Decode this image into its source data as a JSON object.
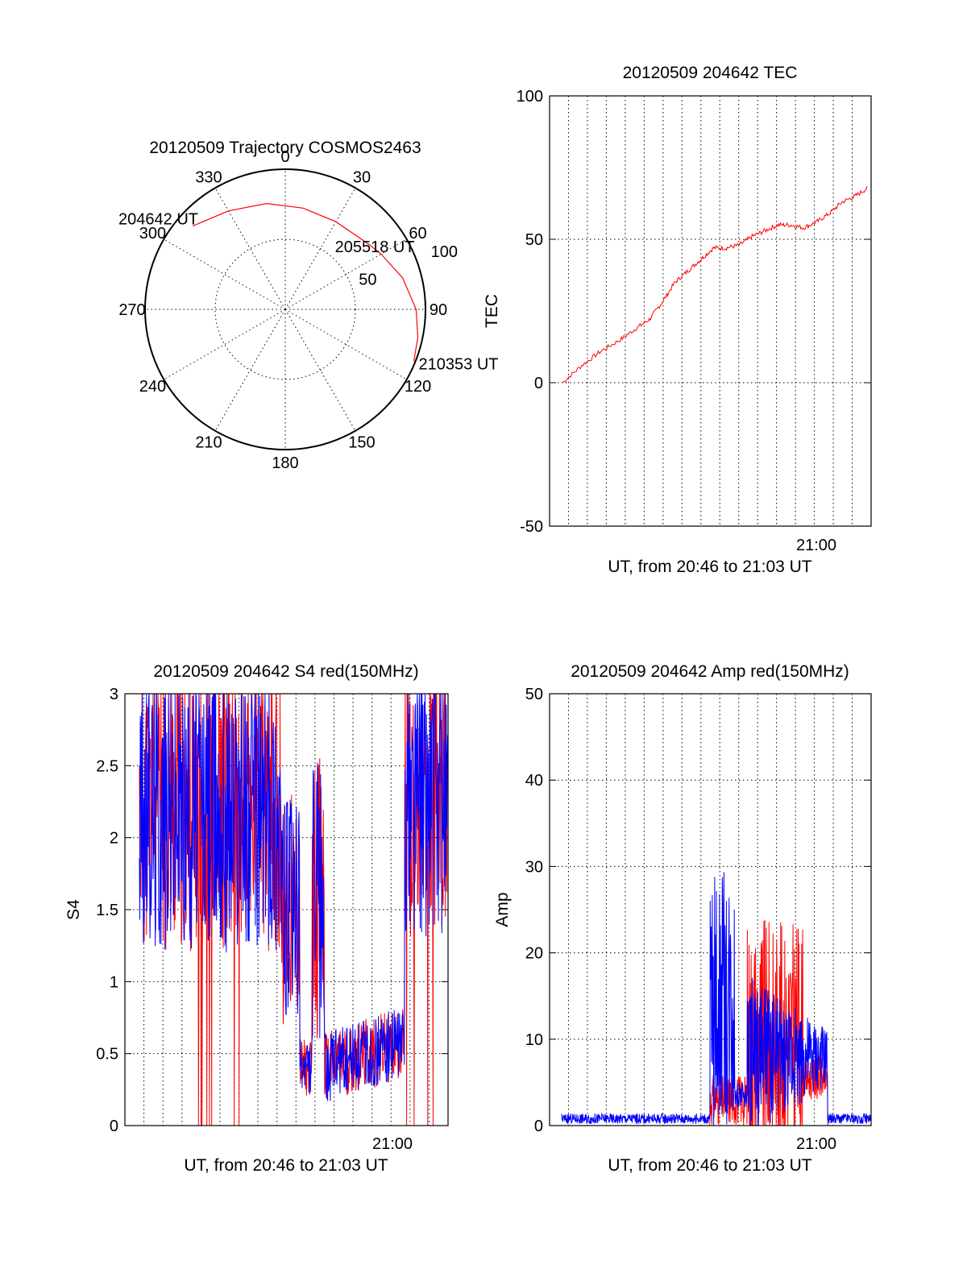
{
  "chart_data": [
    {
      "type": "polar",
      "title": "20120509 Trajectory COSMOS2463",
      "angle_labels": [
        "0",
        "30",
        "60",
        "90",
        "120",
        "150",
        "180",
        "210",
        "240",
        "270",
        "300",
        "330"
      ],
      "radial_labels": [
        "50",
        "100"
      ],
      "series": [
        {
          "color": "#ff0000",
          "points": [
            {
              "az": 312,
              "el": 10
            },
            {
              "az": 330,
              "el": 17
            },
            {
              "az": 350,
              "el": 21
            },
            {
              "az": 10,
              "el": 24
            },
            {
              "az": 30,
              "el": 25
            },
            {
              "az": 52,
              "el": 22
            },
            {
              "az": 60,
              "el": 19
            },
            {
              "az": 75,
              "el": 12
            },
            {
              "az": 90,
              "el": 6
            },
            {
              "az": 102,
              "el": 3
            },
            {
              "az": 112,
              "el": 1
            }
          ]
        }
      ],
      "annotations": [
        {
          "text": "204642 UT",
          "az": 312,
          "el": 10
        },
        {
          "text": "205518 UT",
          "az": 52,
          "el": 22
        },
        {
          "text": "210353 UT",
          "az": 112,
          "el": 1
        }
      ]
    },
    {
      "type": "line",
      "title": "20120509 204642 TEC",
      "xlabel": "UT, from 20:46 to 21:03 UT",
      "ylabel": "TEC",
      "ylim": [
        -50,
        100
      ],
      "yticks": [
        "-50",
        "0",
        "50",
        "100"
      ],
      "xtick_label": "21:00",
      "grid": true,
      "series": [
        {
          "color": "#ff0000",
          "x": [
            0.04,
            0.1,
            0.16,
            0.22,
            0.27,
            0.31,
            0.35,
            0.39,
            0.43,
            0.47,
            0.51,
            0.55,
            0.59,
            0.63,
            0.67,
            0.71,
            0.75,
            0.79,
            0.83,
            0.87,
            0.91,
            0.95,
            0.99
          ],
          "y": [
            0,
            6,
            11,
            15,
            19,
            22,
            28,
            35,
            39,
            43,
            47,
            47,
            48,
            51,
            53,
            55,
            55,
            54,
            56,
            59,
            63,
            65,
            68
          ]
        }
      ]
    },
    {
      "type": "line",
      "title": "20120509 204642 S4 red(150MHz)",
      "xlabel": "UT, from 20:46 to 21:03 UT",
      "ylabel": "S4",
      "ylim": [
        0,
        3
      ],
      "yticks": [
        "0",
        "0.5",
        "1",
        "1.5",
        "2",
        "2.5",
        "3"
      ],
      "xtick_label": "21:00",
      "grid": true,
      "series": [
        {
          "color": "#ff0000",
          "description": "noisy S4 trace"
        },
        {
          "color": "#0000ff",
          "description": "noisy S4 trace"
        }
      ]
    },
    {
      "type": "line",
      "title": "20120509 204642 Amp red(150MHz)",
      "xlabel": "UT, from 20:46 to 21:03 UT",
      "ylabel": "Amp",
      "ylim": [
        0,
        50
      ],
      "yticks": [
        "0",
        "10",
        "20",
        "30",
        "40",
        "50"
      ],
      "xtick_label": "21:00",
      "grid": true,
      "series": [
        {
          "color": "#ff0000",
          "description": "amplitude trace"
        },
        {
          "color": "#0000ff",
          "description": "amplitude trace"
        }
      ]
    }
  ]
}
